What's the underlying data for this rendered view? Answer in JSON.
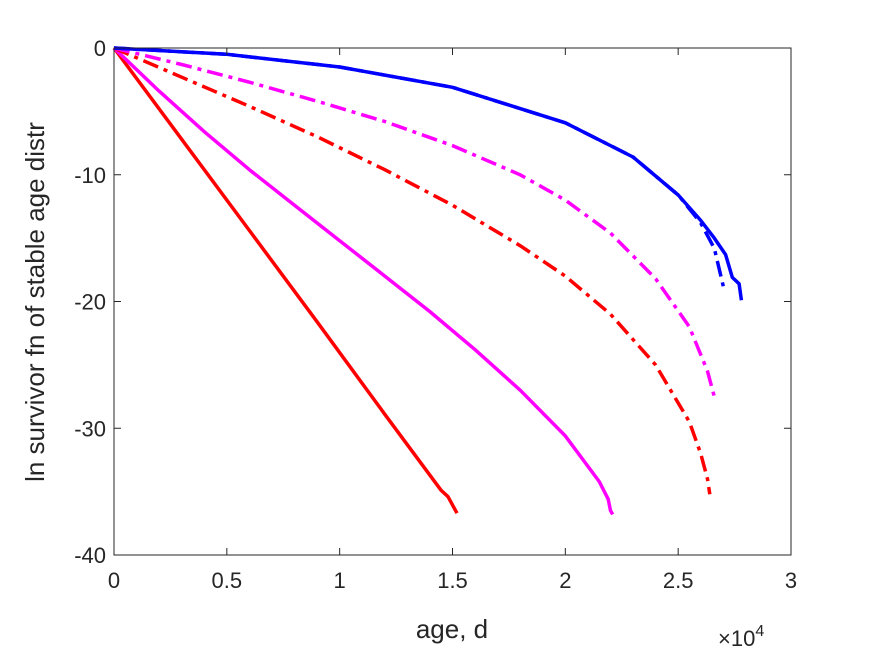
{
  "chart_data": {
    "type": "line",
    "title": "",
    "xlabel": "age, d",
    "ylabel": "ln survivor fn of stable age distr",
    "x_exponent_label": "×10",
    "x_exponent_power": "4",
    "xlim": [
      0,
      3
    ],
    "ylim": [
      -40,
      0
    ],
    "xticks": [
      0,
      0.5,
      1,
      1.5,
      2,
      2.5,
      3
    ],
    "xtick_labels": [
      "0",
      "0.5",
      "1",
      "1.5",
      "2",
      "2.5",
      "3"
    ],
    "yticks": [
      0,
      -10,
      -20,
      -30,
      -40
    ],
    "ytick_labels": [
      "0",
      "-10",
      "-20",
      "-30",
      "-40"
    ],
    "grid": false,
    "legend": "none",
    "series": [
      {
        "color": "#ff0000",
        "style": "solid",
        "points": [
          [
            0,
            0
          ],
          [
            0.3,
            -7.2
          ],
          [
            0.6,
            -14.4
          ],
          [
            0.9,
            -21.6
          ],
          [
            1.2,
            -28.9
          ],
          [
            1.45,
            -34.9
          ],
          [
            1.48,
            -35.4
          ],
          [
            1.52,
            -36.7
          ]
        ]
      },
      {
        "color": "#ff00ff",
        "style": "solid",
        "points": [
          [
            0,
            0
          ],
          [
            0.2,
            -3.4
          ],
          [
            0.4,
            -6.6
          ],
          [
            0.6,
            -9.6
          ],
          [
            0.8,
            -12.4
          ],
          [
            1.0,
            -15.2
          ],
          [
            1.2,
            -18.0
          ],
          [
            1.4,
            -20.8
          ],
          [
            1.6,
            -23.8
          ],
          [
            1.8,
            -27.0
          ],
          [
            2.0,
            -30.6
          ],
          [
            2.15,
            -34.2
          ],
          [
            2.19,
            -35.6
          ],
          [
            2.2,
            -36.5
          ],
          [
            2.21,
            -36.8
          ]
        ]
      },
      {
        "color": "#ff0000",
        "style": "dashdot",
        "points": [
          [
            0,
            0
          ],
          [
            0.3,
            -2.3
          ],
          [
            0.6,
            -4.6
          ],
          [
            0.9,
            -7.0
          ],
          [
            1.2,
            -9.6
          ],
          [
            1.5,
            -12.4
          ],
          [
            1.8,
            -15.6
          ],
          [
            2.0,
            -18.0
          ],
          [
            2.2,
            -21.0
          ],
          [
            2.4,
            -25.0
          ],
          [
            2.55,
            -29.5
          ],
          [
            2.6,
            -32.0
          ],
          [
            2.63,
            -34.0
          ],
          [
            2.64,
            -35.2
          ]
        ]
      },
      {
        "color": "#ff00ff",
        "style": "dashdot",
        "points": [
          [
            0,
            0
          ],
          [
            0.3,
            -1.3
          ],
          [
            0.6,
            -2.7
          ],
          [
            0.9,
            -4.2
          ],
          [
            1.2,
            -5.8
          ],
          [
            1.5,
            -7.7
          ],
          [
            1.8,
            -10.0
          ],
          [
            2.0,
            -12.0
          ],
          [
            2.2,
            -14.6
          ],
          [
            2.4,
            -18.2
          ],
          [
            2.55,
            -22.0
          ],
          [
            2.63,
            -25.5
          ],
          [
            2.66,
            -27.5
          ]
        ]
      },
      {
        "color": "#0000ff",
        "style": "dashdot",
        "points": [
          [
            0,
            0
          ],
          [
            0.5,
            -0.5
          ],
          [
            1.0,
            -1.5
          ],
          [
            1.5,
            -3.1
          ],
          [
            2.0,
            -5.9
          ],
          [
            2.3,
            -8.6
          ],
          [
            2.5,
            -11.6
          ],
          [
            2.6,
            -13.8
          ],
          [
            2.66,
            -15.8
          ],
          [
            2.7,
            -18.8
          ]
        ]
      },
      {
        "color": "#0000ff",
        "style": "solid",
        "points": [
          [
            0,
            0
          ],
          [
            0.5,
            -0.5
          ],
          [
            1.0,
            -1.5
          ],
          [
            1.5,
            -3.1
          ],
          [
            2.0,
            -5.9
          ],
          [
            2.3,
            -8.6
          ],
          [
            2.5,
            -11.6
          ],
          [
            2.6,
            -13.6
          ],
          [
            2.66,
            -15.0
          ],
          [
            2.71,
            -16.3
          ],
          [
            2.74,
            -18.1
          ],
          [
            2.77,
            -18.6
          ],
          [
            2.78,
            -19.9
          ]
        ]
      }
    ]
  }
}
